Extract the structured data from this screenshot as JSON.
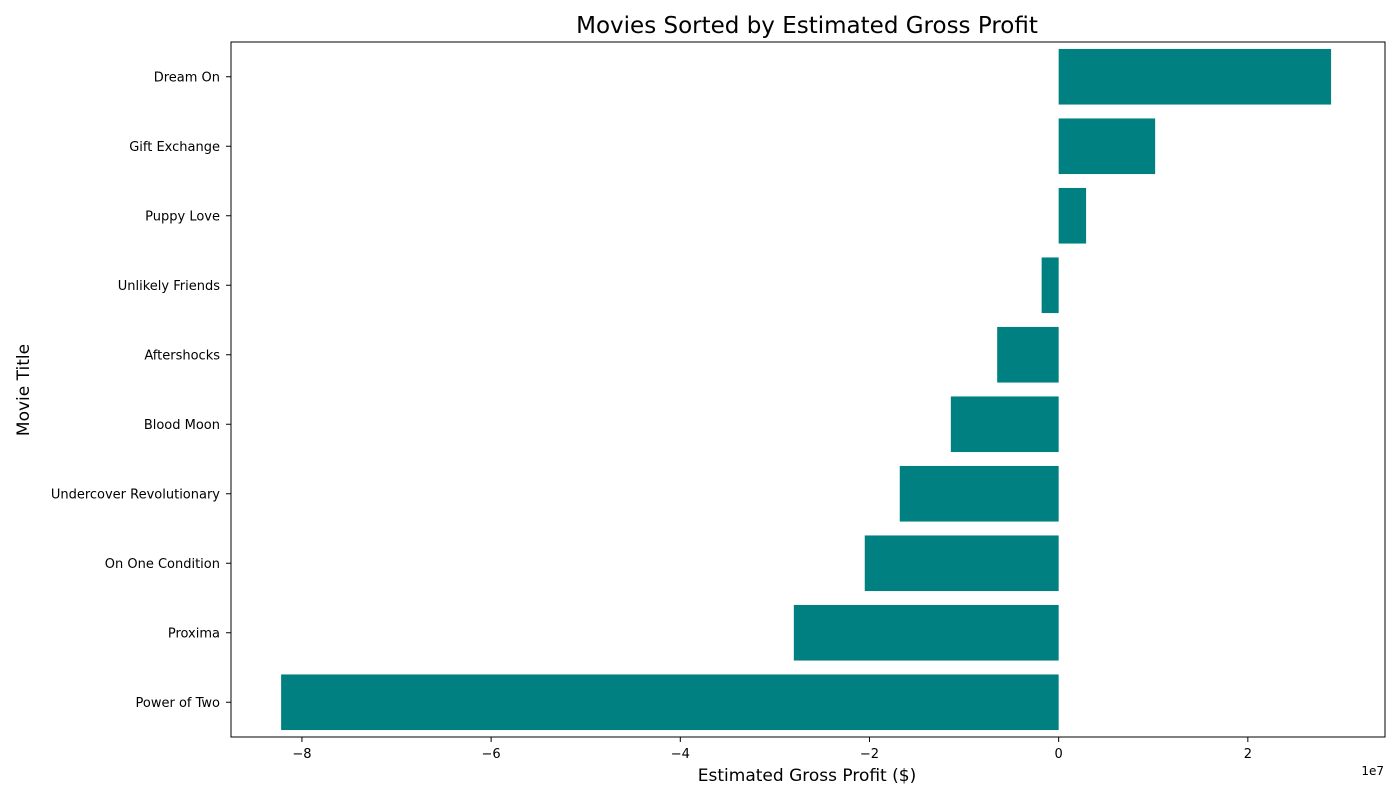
{
  "chart_data": {
    "type": "bar",
    "orientation": "horizontal",
    "title": "Movies Sorted by Estimated Gross Profit",
    "xlabel": "Estimated Gross Profit ($)",
    "ylabel": "Movie Title",
    "x_offset_label": "1e7",
    "xlim": [
      -8.75,
      3.45
    ],
    "x_tick_values": [
      -8,
      -6,
      -4,
      -2,
      0,
      2
    ],
    "x_tick_labels": [
      "−8",
      "−6",
      "−4",
      "−2",
      "0",
      "2"
    ],
    "categories": [
      "Dream On",
      "Gift Exchange",
      "Puppy Love",
      "Unlikely Friends",
      "Aftershocks",
      "Blood Moon",
      "Undercover Revolutionary",
      "On One Condition",
      "Proxima",
      "Power of Two"
    ],
    "values": [
      2.88,
      1.02,
      0.29,
      -0.18,
      -0.65,
      -1.14,
      -1.68,
      -2.05,
      -2.8,
      -8.22
    ],
    "value_unit_multiplier": 10000000,
    "bar_color": "#008080",
    "grid": false,
    "legend": false
  }
}
